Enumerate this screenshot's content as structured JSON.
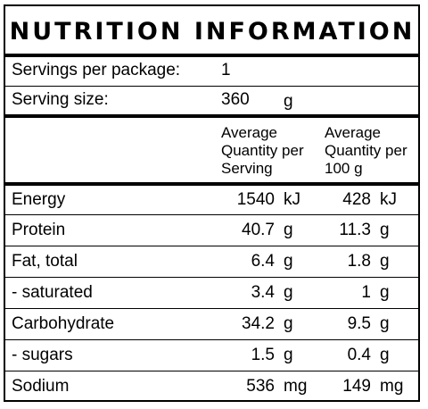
{
  "title": "NUTRITION INFORMATION",
  "servings": {
    "label": "Servings per package:",
    "value": "1"
  },
  "serving_size": {
    "label": "Serving size:",
    "value": "360",
    "unit": "g"
  },
  "headers": {
    "per_serving": [
      "Average",
      "Quantity per",
      "Serving"
    ],
    "per_100g": [
      "Average",
      "Quantity per",
      "100 g"
    ]
  },
  "rows": [
    {
      "name": "Energy",
      "serving": "1540",
      "serving_unit": "kJ",
      "per100": "428",
      "per100_unit": "kJ"
    },
    {
      "name": "Protein",
      "serving": "40.7",
      "serving_unit": "g",
      "per100": "11.3",
      "per100_unit": "g"
    },
    {
      "name": "Fat, total",
      "serving": "6.4",
      "serving_unit": "g",
      "per100": "1.8",
      "per100_unit": "g"
    },
    {
      "name": "- saturated",
      "serving": "3.4",
      "serving_unit": "g",
      "per100": "1",
      "per100_unit": "g"
    },
    {
      "name": "Carbohydrate",
      "serving": "34.2",
      "serving_unit": "g",
      "per100": "9.5",
      "per100_unit": "g"
    },
    {
      "name": "- sugars",
      "serving": "1.5",
      "serving_unit": "g",
      "per100": "0.4",
      "per100_unit": "g"
    },
    {
      "name": "Sodium",
      "serving": "536",
      "serving_unit": "mg",
      "per100": "149",
      "per100_unit": "mg"
    }
  ]
}
